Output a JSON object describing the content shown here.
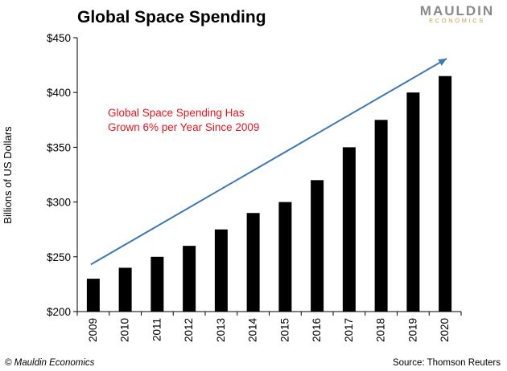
{
  "brand": {
    "name": "MAULDIN",
    "sub": "ECONOMICS"
  },
  "footer": {
    "copyright": "© Mauldin Economics",
    "source": "Source: Thomson Reuters"
  },
  "colors": {
    "bar": "#000000",
    "trend": "#3d79b3",
    "annotation": "#e8141c",
    "brand_sub": "#c8a24a"
  },
  "chart_data": {
    "type": "bar",
    "title": "Global Space Spending",
    "xlabel": "",
    "ylabel": "Billions of US Dollars",
    "categories": [
      "2009",
      "2010",
      "2011",
      "2012",
      "2013",
      "2014",
      "2015",
      "2016",
      "2017",
      "2018",
      "2019",
      "2020"
    ],
    "values": [
      230,
      240,
      250,
      260,
      275,
      290,
      300,
      320,
      350,
      375,
      400,
      415
    ],
    "ylim": [
      200,
      450
    ],
    "yticks": [
      200,
      250,
      300,
      350,
      400,
      450
    ],
    "ytick_labels": [
      "$200",
      "$250",
      "$300",
      "$350",
      "$400",
      "$450"
    ],
    "grid": false,
    "legend": "none",
    "annotation": [
      "Global Space Spending Has",
      "Grown 6% per Year Since 2009"
    ],
    "trend_arrow": {
      "from": [
        "2009",
        243
      ],
      "to": [
        "2020",
        431
      ]
    }
  }
}
